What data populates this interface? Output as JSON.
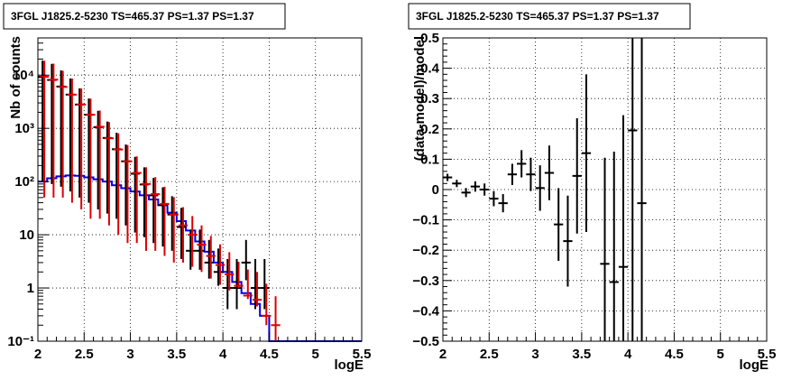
{
  "chart_data": [
    {
      "type": "line",
      "title": "3FGL J1825.2-5230 TS=465.37 PS=1.37 PS=1.37",
      "xlabel": "logE",
      "ylabel": "Nb of counts",
      "xlim": [
        2,
        5.5
      ],
      "ylim": [
        0.1,
        50000
      ],
      "yscale": "log",
      "grid": true,
      "x_ticks": [
        "2",
        "2.5",
        "3",
        "3.5",
        "4",
        "4.5",
        "5",
        "5.5"
      ],
      "y_ticks": [
        "10⁻¹",
        "1",
        "10",
        "10²",
        "10³",
        "10⁴"
      ],
      "colors": {
        "data": "#000000",
        "total_model": "#dd0000",
        "source_model": "#0000ee"
      },
      "x_bin_edges": [
        2.0,
        2.1,
        2.2,
        2.3,
        2.4,
        2.5,
        2.6,
        2.7,
        2.8,
        2.9,
        3.0,
        3.1,
        3.2,
        3.3,
        3.4,
        3.5,
        3.6,
        3.7,
        3.8,
        3.9,
        4.0,
        4.1,
        4.2,
        4.3,
        4.4,
        4.5,
        4.6,
        4.7,
        4.8,
        4.9,
        5.0,
        5.1,
        5.2,
        5.3,
        5.4,
        5.5
      ],
      "series": [
        {
          "role": "data",
          "x": [
            2.05,
            2.15,
            2.25,
            2.35,
            2.45,
            2.55,
            2.65,
            2.75,
            2.85,
            2.95,
            3.05,
            3.15,
            3.25,
            3.35,
            3.45,
            3.55,
            3.65,
            3.75,
            3.85,
            3.95,
            4.05,
            4.15,
            4.25,
            4.35,
            4.45
          ],
          "y": [
            9300,
            8100,
            6100,
            4300,
            2800,
            1800,
            1050,
            660,
            405,
            240,
            140,
            88,
            55,
            36,
            24,
            14,
            5,
            5,
            3,
            2,
            1,
            1,
            3,
            1,
            1
          ],
          "yerr_low": [
            9200,
            8010,
            6020,
            4235,
            2750,
            1760,
            1020,
            635,
            385,
            225,
            129,
            79,
            48,
            30,
            19,
            10.5,
            2.8,
            2.8,
            1.5,
            0.9,
            0.6,
            0.6,
            1.6,
            0.6,
            0.6
          ],
          "yerr_high": [
            9400,
            8190,
            6180,
            4365,
            2850,
            1840,
            1080,
            685,
            425,
            255,
            151,
            97,
            62,
            42,
            29,
            18,
            7.5,
            7.5,
            5,
            3.5,
            2.5,
            2.5,
            5,
            2.5,
            2.5
          ]
        },
        {
          "role": "total_model",
          "x": [
            2.05,
            2.15,
            2.25,
            2.35,
            2.45,
            2.55,
            2.65,
            2.75,
            2.85,
            2.95,
            3.05,
            3.15,
            3.25,
            3.35,
            3.45,
            3.55,
            3.65,
            3.75,
            3.85,
            3.95,
            4.05,
            4.15,
            4.25,
            4.35,
            4.45,
            4.55
          ],
          "y": [
            9300,
            8200,
            6000,
            4300,
            2800,
            1800,
            1070,
            650,
            400,
            240,
            145,
            90,
            58,
            38,
            24,
            15,
            10,
            6.5,
            4,
            2.7,
            1.8,
            1.1,
            0.72,
            0.6,
            0.3,
            0.2
          ],
          "yerr_low": [
            9250,
            8150,
            5950,
            4260,
            2770,
            1780,
            1050,
            635,
            390,
            233,
            138,
            85,
            53,
            34,
            21,
            12,
            7.5,
            4.5,
            2.5,
            1.55,
            0.9,
            0.1,
            0.1,
            0.15,
            0.1,
            0.1
          ],
          "yerr_high": [
            9350,
            8250,
            6050,
            4340,
            2830,
            1820,
            1090,
            665,
            410,
            247,
            152,
            95,
            63,
            42,
            27,
            18,
            12.5,
            8.5,
            5.5,
            3.9,
            2.9,
            2.0,
            1.5,
            1.4,
            0.9,
            0.5
          ]
        },
        {
          "role": "source_model",
          "x": [
            2.05,
            2.15,
            2.25,
            2.35,
            2.45,
            2.55,
            2.65,
            2.75,
            2.85,
            2.95,
            3.05,
            3.15,
            3.25,
            3.35,
            3.45,
            3.55,
            3.65,
            3.75,
            3.85,
            3.95,
            4.05,
            4.15,
            4.25,
            4.35,
            4.45,
            4.55,
            4.65,
            4.75,
            4.85,
            4.95,
            5.05,
            5.15,
            5.25,
            5.35,
            5.45
          ],
          "y": [
            100,
            115,
            125,
            130,
            128,
            120,
            110,
            100,
            85,
            75,
            65,
            55,
            46,
            36,
            26,
            18,
            12,
            7.5,
            4.8,
            3,
            2,
            1.3,
            0.8,
            0.5,
            0.3,
            0.1,
            0.1,
            0.1,
            0.1,
            0.1,
            0.1,
            0.1,
            0.1,
            0.1,
            0.1
          ]
        }
      ]
    },
    {
      "type": "scatter",
      "title": "3FGL J1825.2-5230 TS=465.37 PS=1.37 PS=1.37",
      "xlabel": "logE",
      "ylabel": "(data-model)/model",
      "xlim": [
        2,
        5.5
      ],
      "ylim": [
        -0.5,
        0.5
      ],
      "grid": true,
      "x_ticks": [
        "2",
        "2.5",
        "3",
        "3.5",
        "4",
        "4.5",
        "5",
        "5.5"
      ],
      "y_ticks": [
        "−0.5",
        "−0.4",
        "−0.3",
        "−0.2",
        "−0.1",
        "0",
        "0.1",
        "0.2",
        "0.3",
        "0.4",
        "0.5"
      ],
      "colors": {
        "data": "#000000"
      },
      "series": [
        {
          "role": "residual",
          "x": [
            2.05,
            2.15,
            2.25,
            2.35,
            2.45,
            2.55,
            2.65,
            2.75,
            2.85,
            2.95,
            3.05,
            3.15,
            3.25,
            3.35,
            3.45,
            3.55,
            3.75,
            3.85,
            3.95,
            4.05,
            4.15
          ],
          "y": [
            0.04,
            0.02,
            -0.01,
            0.01,
            0.0,
            -0.03,
            -0.045,
            0.05,
            0.085,
            0.05,
            0.005,
            0.055,
            -0.115,
            -0.17,
            0.045,
            0.12,
            -0.245,
            -0.305,
            -0.255,
            0.195,
            -0.045
          ],
          "yerr": [
            0.012,
            0.012,
            0.015,
            0.017,
            0.02,
            0.025,
            0.03,
            0.035,
            0.045,
            0.055,
            0.075,
            0.09,
            0.12,
            0.15,
            0.19,
            0.26,
            0.35,
            0.43,
            0.5,
            0.9,
            0.8
          ]
        }
      ]
    }
  ]
}
